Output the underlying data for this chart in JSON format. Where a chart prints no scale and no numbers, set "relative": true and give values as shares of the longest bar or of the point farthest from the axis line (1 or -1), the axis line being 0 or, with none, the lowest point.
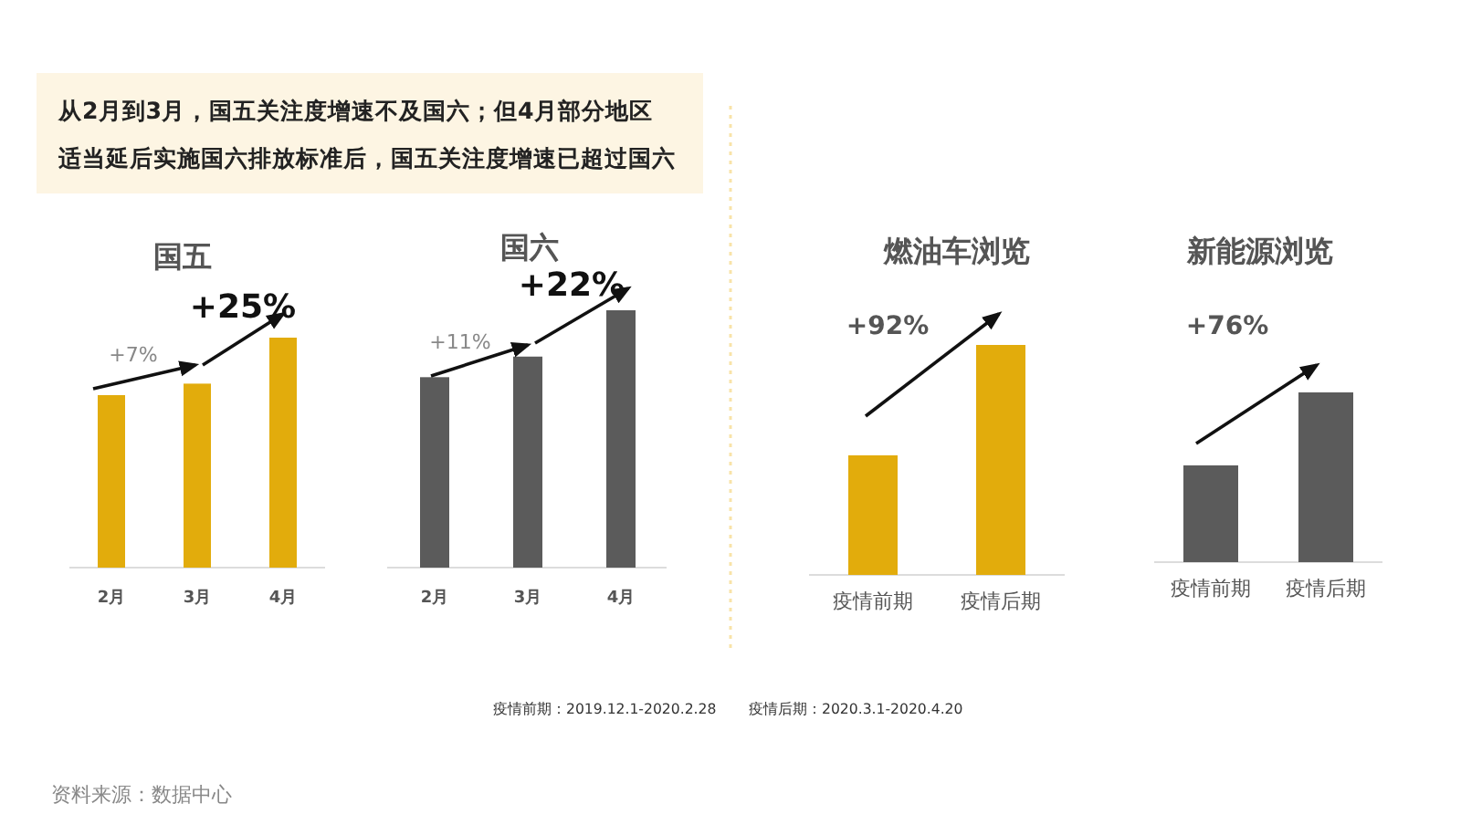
{
  "chart_data": [
    {
      "type": "other",
      "title": "从2月到3月，国五关注度增速不及国六；但4月部分地区适当延后实施国六排放标准后，国五关注度增速已超过国六",
      "annotations": [
        "疫情前期：2019.12.1-2020.2.28",
        "疫情后期：2020.3.1-2020.4.20",
        "资料来源：数据中心"
      ]
    },
    {
      "type": "bar",
      "title": "国五",
      "categories": [
        "2月",
        "3月",
        "4月"
      ],
      "values": [
        0.75,
        0.8,
        1
      ],
      "color": "#e2ac0c",
      "relative": true,
      "annotations": [
        "+7%",
        "+25%"
      ]
    },
    {
      "type": "bar",
      "title": "国六",
      "categories": [
        "2月",
        "3月",
        "4月"
      ],
      "values": [
        0.74,
        0.82,
        1
      ],
      "color": "#5b5b5b",
      "relative": true,
      "annotations": [
        "+11%",
        "+22%"
      ]
    },
    {
      "type": "bar",
      "title": "燃油车浏览",
      "categories": [
        "疫情前期",
        "疫情后期"
      ],
      "values": [
        0.52,
        1
      ],
      "color": "#e2ac0c",
      "relative": true,
      "annotations": [
        "+92%"
      ]
    },
    {
      "type": "bar",
      "title": "新能源浏览",
      "categories": [
        "疫情前期",
        "疫情后期"
      ],
      "values": [
        0.57,
        1
      ],
      "color": "#5b5b5b",
      "relative": true,
      "annotations": [
        "+76%"
      ]
    }
  ]
}
